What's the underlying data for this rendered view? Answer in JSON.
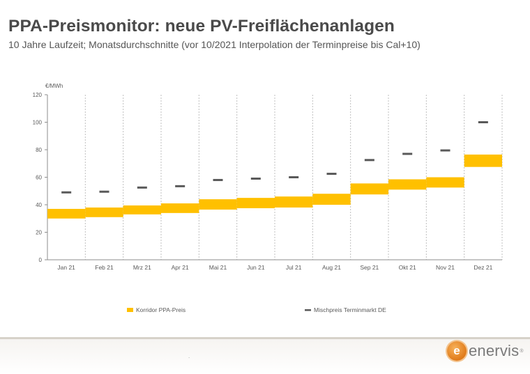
{
  "header": {
    "title": "PPA-Preismonitor: neue PV-Freiflächenanlagen",
    "subtitle": "10 Jahre Laufzeit; Monatsdurchschnitte (vor 10/2021 Interpolation der Terminpreise bis Cal+10)"
  },
  "footer": {
    "logo_letter": "e",
    "logo_text": "enervis",
    "logo_mark": "®",
    "dot": "."
  },
  "colors": {
    "ppa_band": "#FFC000",
    "market_marker": "#595959",
    "grid": "#bfbfbf",
    "axis_text": "#595959",
    "logo_orange": "#E8801F"
  },
  "chart_data": {
    "type": "bar",
    "title": "",
    "ylabel": "€/MWh",
    "xlabel": "",
    "ylim": [
      0,
      120
    ],
    "yticks": [
      0,
      20,
      40,
      60,
      80,
      100,
      120
    ],
    "grid": "vertical dashed",
    "legend_position": "bottom",
    "categories": [
      "Jan 21",
      "Feb 21",
      "Mrz 21",
      "Apr 21",
      "Mai 21",
      "Jun 21",
      "Jul 21",
      "Aug 21",
      "Sep 21",
      "Okt 21",
      "Nov 21",
      "Dez 21"
    ],
    "series": [
      {
        "name": "Korridor PPA-Preis",
        "kind": "range",
        "low": [
          30,
          31,
          33,
          34,
          36.5,
          37.5,
          38,
          40,
          47.5,
          51,
          52.5,
          67.5
        ],
        "high": [
          37,
          38,
          39.5,
          41,
          44,
          45,
          46,
          48,
          55.5,
          58.5,
          60,
          76.5
        ]
      },
      {
        "name": "Mischpreis Terminmarkt DE",
        "kind": "marker",
        "values": [
          49,
          49.5,
          52.5,
          53.5,
          58,
          59,
          60,
          62.5,
          72.5,
          77,
          79.5,
          100
        ]
      }
    ]
  }
}
